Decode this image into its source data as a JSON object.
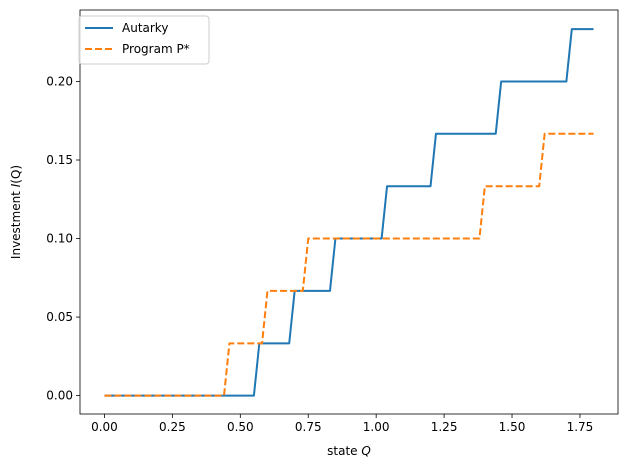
{
  "chart_data": {
    "type": "line",
    "xlabel": "state",
    "xlabel_var": "Q",
    "ylabel_prefix": "Investment ",
    "ylabel_var": "I",
    "ylabel_suffix": "(Q)",
    "xlim": [
      -0.09,
      1.89
    ],
    "ylim": [
      -0.0117,
      0.2455
    ],
    "grid": false,
    "legend_position": "top-left",
    "x_ticks": [
      0.0,
      0.25,
      0.5,
      0.75,
      1.0,
      1.25,
      1.5,
      1.75
    ],
    "x_tick_labels": [
      "0.00",
      "0.25",
      "0.50",
      "0.75",
      "1.00",
      "1.25",
      "1.50",
      "1.75"
    ],
    "y_ticks": [
      0.0,
      0.05,
      0.1,
      0.15,
      0.2
    ],
    "y_tick_labels": [
      "0.00",
      "0.05",
      "0.10",
      "0.15",
      "0.20"
    ],
    "series": [
      {
        "name": "Autarky",
        "color": "#1f77b4",
        "style": "solid",
        "x": [
          0.0,
          0.55,
          0.57,
          0.68,
          0.7,
          0.83,
          0.85,
          1.02,
          1.04,
          1.2,
          1.22,
          1.44,
          1.46,
          1.7,
          1.72,
          1.8
        ],
        "y": [
          0.0,
          0.0,
          0.0333,
          0.0333,
          0.0667,
          0.0667,
          0.1,
          0.1,
          0.1333,
          0.1333,
          0.1667,
          0.1667,
          0.2,
          0.2,
          0.2333,
          0.2333
        ]
      },
      {
        "name": "Program P*",
        "color": "#ff7f0e",
        "style": "dashed",
        "x": [
          0.0,
          0.44,
          0.46,
          0.58,
          0.6,
          0.73,
          0.75,
          1.38,
          1.4,
          1.6,
          1.62,
          1.8
        ],
        "y": [
          0.0,
          0.0,
          0.0333,
          0.0333,
          0.0667,
          0.0667,
          0.1,
          0.1,
          0.1333,
          0.1333,
          0.1667,
          0.1667
        ]
      }
    ]
  }
}
